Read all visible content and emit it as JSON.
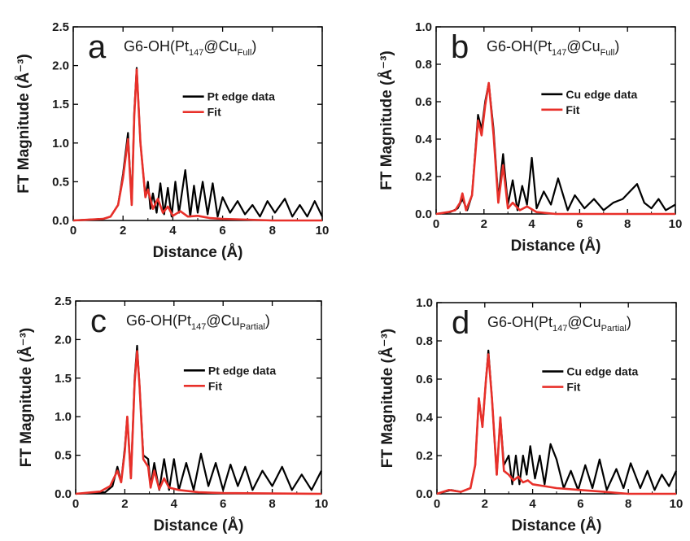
{
  "chart_data": [
    {
      "panel": "a",
      "type": "line",
      "title": "G6-OH(Pt147@CuFull)",
      "title_parts": {
        "pre": "G6-OH(Pt",
        "sub1": "147",
        "mid": "@Cu",
        "sub2": "Full",
        "post": ")"
      },
      "xlabel": "Distance (Å)",
      "ylabel": "FT Magnitude (Å⁻³)",
      "xlim": [
        0,
        10
      ],
      "ylim": [
        0,
        2.5
      ],
      "xticks": [
        "0",
        "2",
        "4",
        "6",
        "8",
        "10"
      ],
      "yticks": [
        "0.0",
        "0.5",
        "1.0",
        "1.5",
        "2.0",
        "2.5"
      ],
      "legend_position": "right",
      "series": [
        {
          "name": "Pt edge data",
          "color": "#000000",
          "x": [
            0,
            1.2,
            1.5,
            1.8,
            2.0,
            2.2,
            2.35,
            2.45,
            2.55,
            2.7,
            2.9,
            3.0,
            3.1,
            3.2,
            3.35,
            3.5,
            3.65,
            3.8,
            3.95,
            4.1,
            4.25,
            4.5,
            4.7,
            4.85,
            5.0,
            5.2,
            5.4,
            5.6,
            5.8,
            6.0,
            6.3,
            6.6,
            6.9,
            7.2,
            7.5,
            7.8,
            8.1,
            8.5,
            8.8,
            9.1,
            9.4,
            9.7,
            10.0
          ],
          "y": [
            0,
            0.02,
            0.05,
            0.2,
            0.6,
            1.13,
            0.2,
            1.4,
            1.97,
            1.0,
            0.3,
            0.5,
            0.15,
            0.35,
            0.1,
            0.48,
            0.08,
            0.42,
            0.05,
            0.5,
            0.1,
            0.65,
            0.05,
            0.45,
            0.1,
            0.5,
            0.08,
            0.48,
            0.05,
            0.3,
            0.1,
            0.25,
            0.08,
            0.2,
            0.05,
            0.25,
            0.1,
            0.28,
            0.05,
            0.2,
            0.05,
            0.25,
            0.05
          ]
        },
        {
          "name": "Fit",
          "color": "#e8302a",
          "x": [
            0,
            1.2,
            1.5,
            1.8,
            2.0,
            2.2,
            2.35,
            2.45,
            2.55,
            2.7,
            2.9,
            3.0,
            3.2,
            3.4,
            3.6,
            3.8,
            4.0,
            4.3,
            4.6,
            5.0,
            5.5,
            6.0,
            7.0,
            8.0,
            10.0
          ],
          "y": [
            0,
            0.02,
            0.05,
            0.2,
            0.55,
            1.05,
            0.2,
            1.35,
            1.95,
            1.0,
            0.3,
            0.4,
            0.15,
            0.28,
            0.1,
            0.18,
            0.06,
            0.12,
            0.05,
            0.06,
            0.03,
            0.02,
            0.01,
            0.0,
            0.0
          ]
        }
      ]
    },
    {
      "panel": "b",
      "type": "line",
      "title": "G6-OH(Pt147@CuFull)",
      "title_parts": {
        "pre": "G6-OH(Pt",
        "sub1": "147",
        "mid": "@Cu",
        "sub2": "Full",
        "post": ")"
      },
      "xlabel": "Distance (Å)",
      "ylabel": "FT Magnitude (Å⁻³)",
      "xlim": [
        0,
        10
      ],
      "ylim": [
        0,
        1.0
      ],
      "xticks": [
        "0",
        "2",
        "4",
        "6",
        "8",
        "10"
      ],
      "yticks": [
        "0.0",
        "0.2",
        "0.4",
        "0.6",
        "0.8",
        "1.0"
      ],
      "legend_position": "right",
      "series": [
        {
          "name": "Cu edge data",
          "color": "#000000",
          "x": [
            0,
            0.6,
            0.9,
            1.1,
            1.3,
            1.5,
            1.75,
            1.9,
            2.05,
            2.2,
            2.4,
            2.6,
            2.8,
            3.0,
            3.2,
            3.4,
            3.6,
            3.8,
            4.0,
            4.2,
            4.5,
            4.8,
            5.1,
            5.5,
            5.8,
            6.2,
            6.6,
            7.0,
            7.4,
            7.8,
            8.1,
            8.4,
            8.7,
            9.0,
            9.3,
            9.6,
            10.0
          ],
          "y": [
            0,
            0.01,
            0.03,
            0.08,
            0.02,
            0.1,
            0.53,
            0.45,
            0.6,
            0.7,
            0.45,
            0.08,
            0.32,
            0.05,
            0.18,
            0.02,
            0.15,
            0.05,
            0.3,
            0.03,
            0.12,
            0.05,
            0.19,
            0.02,
            0.1,
            0.03,
            0.08,
            0.02,
            0.06,
            0.08,
            0.12,
            0.16,
            0.06,
            0.03,
            0.08,
            0.02,
            0.05
          ]
        },
        {
          "name": "Fit",
          "color": "#e8302a",
          "x": [
            0,
            0.5,
            0.8,
            1.0,
            1.1,
            1.25,
            1.5,
            1.75,
            1.9,
            2.05,
            2.2,
            2.4,
            2.6,
            2.8,
            3.0,
            3.2,
            3.5,
            3.8,
            4.2,
            5.0,
            6.0,
            10.0
          ],
          "y": [
            0,
            0.01,
            0.02,
            0.06,
            0.11,
            0.02,
            0.1,
            0.5,
            0.42,
            0.58,
            0.7,
            0.42,
            0.06,
            0.26,
            0.03,
            0.06,
            0.02,
            0.04,
            0.01,
            0.0,
            0.0,
            0.0
          ]
        }
      ]
    },
    {
      "panel": "c",
      "type": "line",
      "title": "G6-OH(Pt147@CuPartial)",
      "title_parts": {
        "pre": "G6-OH(Pt",
        "sub1": "147",
        "mid": "@Cu",
        "sub2": "Partial",
        "post": ")"
      },
      "xlabel": "Distance (Å)",
      "ylabel": "FT Magnitude (Å⁻³)",
      "xlim": [
        0,
        10
      ],
      "ylim": [
        0,
        2.5
      ],
      "xticks": [
        "0",
        "2",
        "4",
        "6",
        "8",
        "10"
      ],
      "yticks": [
        "0.0",
        "0.5",
        "1.0",
        "1.5",
        "2.0",
        "2.5"
      ],
      "legend_position": "right",
      "series": [
        {
          "name": "Pt edge data",
          "color": "#000000",
          "x": [
            0,
            1.2,
            1.5,
            1.7,
            1.85,
            2.0,
            2.1,
            2.25,
            2.4,
            2.5,
            2.6,
            2.75,
            2.95,
            3.05,
            3.2,
            3.4,
            3.6,
            3.8,
            4.0,
            4.2,
            4.5,
            4.8,
            5.1,
            5.4,
            5.7,
            6.0,
            6.3,
            6.6,
            6.9,
            7.2,
            7.6,
            8.0,
            8.4,
            8.8,
            9.2,
            9.6,
            10.0
          ],
          "y": [
            0,
            0.02,
            0.1,
            0.35,
            0.15,
            0.6,
            1.0,
            0.2,
            1.5,
            1.92,
            1.4,
            0.5,
            0.45,
            0.1,
            0.4,
            0.05,
            0.45,
            0.05,
            0.45,
            0.05,
            0.4,
            0.05,
            0.52,
            0.1,
            0.4,
            0.05,
            0.38,
            0.1,
            0.35,
            0.05,
            0.3,
            0.1,
            0.35,
            0.05,
            0.25,
            0.05,
            0.3
          ]
        },
        {
          "name": "Fit",
          "color": "#e8302a",
          "x": [
            0,
            1.0,
            1.4,
            1.7,
            1.85,
            2.0,
            2.1,
            2.25,
            2.4,
            2.5,
            2.6,
            2.75,
            2.95,
            3.05,
            3.2,
            3.4,
            3.6,
            3.8,
            4.2,
            5.0,
            6.0,
            10.0
          ],
          "y": [
            0,
            0.03,
            0.1,
            0.3,
            0.15,
            0.55,
            1.0,
            0.2,
            1.45,
            1.85,
            1.4,
            0.45,
            0.35,
            0.08,
            0.3,
            0.06,
            0.2,
            0.08,
            0.05,
            0.02,
            0.01,
            0.0
          ]
        }
      ]
    },
    {
      "panel": "d",
      "type": "line",
      "title": "G6-OH(Pt147@CuPartial)",
      "title_parts": {
        "pre": "G6-OH(Pt",
        "sub1": "147",
        "mid": "@Cu",
        "sub2": "Partial",
        "post": ")"
      },
      "xlabel": "Distance (Å)",
      "ylabel": "FT Magnitude (Å⁻³)",
      "xlim": [
        0,
        10
      ],
      "ylim": [
        0,
        1.0
      ],
      "xticks": [
        "0",
        "2",
        "4",
        "6",
        "8",
        "10"
      ],
      "yticks": [
        "0.0",
        "0.2",
        "0.4",
        "0.6",
        "0.8",
        "1.0"
      ],
      "legend_position": "right",
      "series": [
        {
          "name": "Cu edge data",
          "color": "#000000",
          "x": [
            0,
            0.6,
            1.0,
            1.4,
            1.6,
            1.75,
            1.9,
            2.05,
            2.15,
            2.3,
            2.5,
            2.65,
            2.8,
            3.0,
            3.15,
            3.3,
            3.45,
            3.6,
            3.75,
            3.9,
            4.1,
            4.3,
            4.5,
            4.75,
            5.0,
            5.3,
            5.6,
            5.9,
            6.2,
            6.5,
            6.8,
            7.1,
            7.5,
            7.8,
            8.1,
            8.5,
            8.8,
            9.1,
            9.4,
            9.7,
            10.0
          ],
          "y": [
            0,
            0.02,
            0.01,
            0.03,
            0.15,
            0.5,
            0.35,
            0.6,
            0.75,
            0.5,
            0.1,
            0.4,
            0.15,
            0.2,
            0.05,
            0.2,
            0.05,
            0.2,
            0.1,
            0.25,
            0.08,
            0.2,
            0.05,
            0.26,
            0.18,
            0.03,
            0.12,
            0.02,
            0.15,
            0.03,
            0.18,
            0.02,
            0.13,
            0.03,
            0.16,
            0.03,
            0.12,
            0.02,
            0.1,
            0.04,
            0.12
          ]
        },
        {
          "name": "Fit",
          "color": "#e8302a",
          "x": [
            0,
            0.5,
            1.0,
            1.4,
            1.6,
            1.75,
            1.9,
            2.05,
            2.15,
            2.3,
            2.5,
            2.65,
            2.8,
            3.0,
            3.2,
            3.4,
            3.6,
            3.8,
            4.0,
            4.5,
            5.0,
            6.0,
            7.0,
            8.0,
            10.0
          ],
          "y": [
            0,
            0.02,
            0.01,
            0.03,
            0.15,
            0.5,
            0.35,
            0.6,
            0.73,
            0.5,
            0.1,
            0.4,
            0.12,
            0.1,
            0.07,
            0.09,
            0.06,
            0.07,
            0.05,
            0.04,
            0.03,
            0.02,
            0.01,
            0.0,
            0.0
          ]
        }
      ]
    }
  ]
}
